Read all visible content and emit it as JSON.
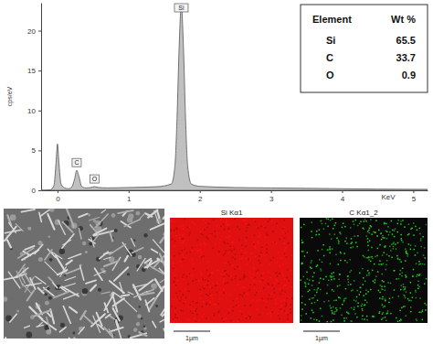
{
  "chart_data": {
    "type": "area",
    "x_label": "KeV",
    "y_label": "cps/eV",
    "x": [
      -0.23,
      -0.1,
      -0.05,
      -0.02,
      0,
      0.02,
      0.05,
      0.1,
      0.15,
      0.2,
      0.24,
      0.27,
      0.3,
      0.34,
      0.4,
      0.47,
      0.52,
      0.58,
      0.7,
      1.0,
      1.4,
      1.6,
      1.65,
      1.68,
      1.71,
      1.74,
      1.77,
      1.8,
      1.83,
      1.88,
      2.0,
      2.5,
      3.0,
      3.5,
      4.0,
      4.5,
      5.2
    ],
    "values": [
      0,
      0.05,
      0.6,
      3.5,
      5.8,
      3.5,
      0.8,
      0.3,
      0.2,
      0.4,
      1.4,
      2.5,
      1.8,
      0.5,
      0.3,
      0.35,
      0.45,
      0.35,
      0.3,
      0.35,
      0.45,
      0.8,
      3,
      9,
      18,
      23.2,
      18,
      9,
      3,
      0.8,
      0.5,
      0.35,
      0.3,
      0.25,
      0.2,
      0.15,
      0.12
    ],
    "color": "#c0c0c0",
    "xlim": [
      -0.23,
      5.2
    ],
    "ylim": [
      0,
      23.5
    ],
    "xticks": [
      0,
      1,
      2,
      3,
      4,
      5
    ],
    "yticks": [
      0,
      5,
      10,
      15,
      20
    ],
    "annotations": [
      {
        "text": "C",
        "x": 0.27
      },
      {
        "text": "O",
        "x": 0.52
      },
      {
        "text": "Si",
        "x": 1.74
      }
    ]
  },
  "table": {
    "header": [
      "Element",
      "Wt %"
    ],
    "rows": [
      [
        "Si",
        65.5
      ],
      [
        "C",
        33.7
      ],
      [
        "O",
        0.9
      ]
    ]
  },
  "maps": [
    {
      "title": "Si Kα1",
      "scale_bar": "1µm",
      "color": "#e01010"
    },
    {
      "title": "C Kα1_2",
      "scale_bar": "1µm",
      "color": "#22d022"
    }
  ]
}
